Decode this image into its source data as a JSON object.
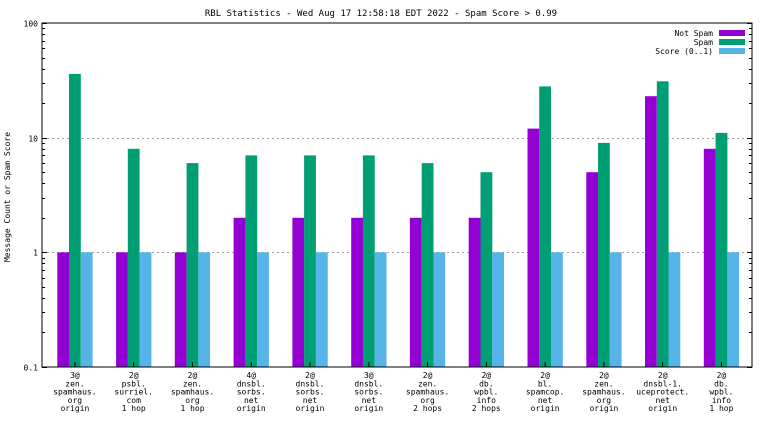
{
  "chart_data": {
    "type": "bar",
    "title": "RBL Statistics - Wed Aug 17 12:58:18 EDT 2022 - Spam Score > 0.99",
    "xlabel": "",
    "ylabel": "Message Count or Spam Score",
    "yscale": "log",
    "ylim": [
      0.1,
      100
    ],
    "yticks": [
      {
        "value": 0.1,
        "label": "0.1"
      },
      {
        "value": 1,
        "label": "1"
      },
      {
        "value": 10,
        "label": "10"
      },
      {
        "value": 100,
        "label": "100"
      }
    ],
    "grid": true,
    "legend_position": "top-right",
    "categories": [
      [
        "3@",
        "zen.",
        "spamhaus.",
        "org",
        "origin"
      ],
      [
        "2@",
        "psbl.",
        "surriel.",
        "com",
        "1 hop"
      ],
      [
        "2@",
        "zen.",
        "spamhaus.",
        "org",
        "1 hop"
      ],
      [
        "4@",
        "dnsbl.",
        "sorbs.",
        "net",
        "origin"
      ],
      [
        "2@",
        "dnsbl.",
        "sorbs.",
        "net",
        "origin"
      ],
      [
        "3@",
        "dnsbl.",
        "sorbs.",
        "net",
        "origin"
      ],
      [
        "2@",
        "zen.",
        "spamhaus.",
        "org",
        "2 hops"
      ],
      [
        "2@",
        "db.",
        "wpbl.",
        "info",
        "2 hops"
      ],
      [
        "2@",
        "bl.",
        "spamcop.",
        "net",
        "origin"
      ],
      [
        "2@",
        "zen.",
        "spamhaus.",
        "org",
        "origin"
      ],
      [
        "2@",
        "dnsbl-1.",
        "uceprotect.",
        "net",
        "origin"
      ],
      [
        "2@",
        "db.",
        "wpbl.",
        "info",
        "1 hop"
      ]
    ],
    "series": [
      {
        "name": "Not Spam",
        "color": "#9400d3",
        "values": [
          1,
          1,
          1,
          2,
          2,
          2,
          2,
          2,
          12,
          5,
          23,
          8
        ]
      },
      {
        "name": "Spam",
        "color": "#009e73",
        "values": [
          36,
          8,
          6,
          7,
          7,
          7,
          6,
          5,
          28,
          9,
          31,
          11
        ]
      },
      {
        "name": "Score (0..1)",
        "color": "#56b4e9",
        "values": [
          1,
          1,
          1,
          1,
          1,
          1,
          1,
          1,
          1,
          1,
          1,
          1
        ]
      }
    ]
  }
}
